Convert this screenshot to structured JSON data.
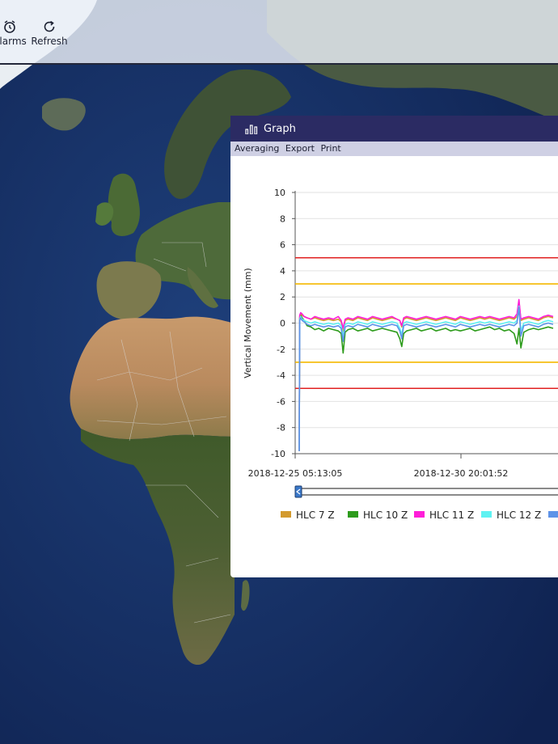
{
  "toolbar": {
    "alarms_label": "Alarms",
    "refresh_label": "Refresh"
  },
  "graph_window": {
    "title": "Graph",
    "menu": [
      "Averaging",
      "Export",
      "Print"
    ]
  },
  "colors": {
    "alarm_line": "#e02020",
    "warning_line": "#f5b800",
    "titlebar": "#2b2b63"
  },
  "chart_data": {
    "type": "line",
    "title": "",
    "xlabel": "",
    "ylabel": "Vertical Movement (mm)",
    "ylim": [
      -10,
      10
    ],
    "yticks": [
      10,
      8,
      6,
      4,
      2,
      0,
      -2,
      -4,
      -6,
      -8,
      -10
    ],
    "xticks": [
      "2018-12-25 05:13:05",
      "2018-12-30 20:01:52"
    ],
    "grid": true,
    "thresholds": [
      {
        "name": "alarm-upper",
        "value": 5,
        "color": "#e02020"
      },
      {
        "name": "warning-upper",
        "value": 3,
        "color": "#f5b800"
      },
      {
        "name": "warning-lower",
        "value": -3,
        "color": "#f5b800"
      },
      {
        "name": "alarm-lower",
        "value": -5,
        "color": "#e02020"
      }
    ],
    "x": [
      0,
      0.05,
      0.15,
      0.3,
      0.5,
      0.8,
      1.2,
      1.6,
      2.0,
      2.5,
      3.0,
      3.5,
      4.0,
      4.3,
      4.5,
      4.7,
      5.0,
      5.5,
      6.0,
      6.5,
      7.0,
      7.5,
      8.0,
      8.5,
      9.0,
      9.5,
      10.0,
      10.3,
      10.5,
      10.7,
      11.0,
      11.5,
      12.0,
      12.5,
      13.0,
      13.5,
      14.0,
      14.5,
      15.0,
      15.5,
      16.0,
      16.5,
      17.0,
      17.5,
      18.0,
      18.5,
      19.0,
      19.5,
      20.0,
      20.5,
      21.0,
      21.5,
      22.0,
      22.3,
      22.5,
      22.7,
      23.0,
      23.5,
      24.0,
      24.5,
      25.0,
      25.5,
      26.0
    ],
    "series": [
      {
        "name": "HLC 7 Z",
        "color": "#d39a2e",
        "values": [
          -9.8,
          0.5,
          0.7,
          0.6,
          0.5,
          0.4,
          0.3,
          0.4,
          0.3,
          0.2,
          0.3,
          0.2,
          0.3,
          0.1,
          -0.6,
          0.2,
          0.3,
          0.2,
          0.4,
          0.3,
          0.2,
          0.4,
          0.3,
          0.2,
          0.3,
          0.4,
          0.3,
          0.2,
          -0.3,
          0.3,
          0.4,
          0.3,
          0.2,
          0.3,
          0.4,
          0.3,
          0.2,
          0.3,
          0.4,
          0.3,
          0.2,
          0.4,
          0.3,
          0.2,
          0.3,
          0.4,
          0.3,
          0.4,
          0.3,
          0.2,
          0.3,
          0.4,
          0.3,
          0.5,
          1.7,
          0.2,
          0.3,
          0.4,
          0.3,
          0.2,
          0.4,
          0.5,
          0.4
        ]
      },
      {
        "name": "HLC 10 Z",
        "color": "#2d9b1b",
        "values": [
          -9.8,
          0.4,
          0.6,
          0.4,
          0.2,
          -0.2,
          -0.3,
          -0.5,
          -0.4,
          -0.6,
          -0.4,
          -0.5,
          -0.6,
          -0.8,
          -2.3,
          -0.7,
          -0.5,
          -0.4,
          -0.6,
          -0.5,
          -0.4,
          -0.6,
          -0.5,
          -0.4,
          -0.5,
          -0.6,
          -0.7,
          -1.2,
          -1.8,
          -0.8,
          -0.6,
          -0.5,
          -0.4,
          -0.6,
          -0.5,
          -0.4,
          -0.6,
          -0.5,
          -0.4,
          -0.6,
          -0.5,
          -0.6,
          -0.5,
          -0.4,
          -0.6,
          -0.5,
          -0.4,
          -0.3,
          -0.5,
          -0.4,
          -0.6,
          -0.5,
          -0.8,
          -1.6,
          -0.4,
          -1.9,
          -0.7,
          -0.5,
          -0.4,
          -0.5,
          -0.4,
          -0.3,
          -0.4
        ]
      },
      {
        "name": "HLC 11 Z",
        "color": "#ff1dd8",
        "values": [
          -9.8,
          0.6,
          0.8,
          0.7,
          0.5,
          0.4,
          0.3,
          0.5,
          0.4,
          0.3,
          0.4,
          0.3,
          0.5,
          0.2,
          -0.4,
          0.3,
          0.4,
          0.3,
          0.5,
          0.4,
          0.3,
          0.5,
          0.4,
          0.3,
          0.4,
          0.5,
          0.3,
          0.2,
          -0.2,
          0.4,
          0.5,
          0.4,
          0.3,
          0.4,
          0.5,
          0.4,
          0.3,
          0.4,
          0.5,
          0.4,
          0.3,
          0.5,
          0.4,
          0.3,
          0.4,
          0.5,
          0.4,
          0.5,
          0.4,
          0.3,
          0.4,
          0.5,
          0.4,
          0.7,
          1.8,
          0.3,
          0.4,
          0.5,
          0.4,
          0.3,
          0.5,
          0.6,
          0.5
        ]
      },
      {
        "name": "HLC 12 Z",
        "color": "#5ef2f2",
        "values": [
          -9.8,
          0.3,
          0.5,
          0.3,
          0.2,
          0.1,
          0.0,
          0.1,
          0.0,
          -0.1,
          0.0,
          -0.1,
          0.0,
          -0.2,
          -1.0,
          -0.1,
          0.0,
          -0.1,
          0.1,
          0.0,
          -0.1,
          0.1,
          0.0,
          -0.1,
          0.0,
          0.1,
          0.0,
          -0.4,
          -0.9,
          0.0,
          0.1,
          0.0,
          -0.1,
          0.0,
          0.1,
          0.0,
          -0.1,
          0.0,
          0.1,
          0.0,
          -0.1,
          0.1,
          0.0,
          -0.1,
          0.0,
          0.1,
          0.0,
          0.1,
          0.0,
          -0.1,
          0.0,
          0.1,
          0.0,
          0.2,
          1.3,
          -0.6,
          0.0,
          0.1,
          0.0,
          -0.1,
          0.1,
          0.2,
          0.1
        ]
      },
      {
        "name": "",
        "color": "#5e93e8",
        "values": [
          -9.8,
          0.2,
          0.4,
          0.2,
          0.1,
          -0.1,
          -0.2,
          -0.1,
          -0.2,
          -0.3,
          -0.2,
          -0.3,
          -0.2,
          -0.4,
          -1.4,
          -0.3,
          -0.2,
          -0.3,
          -0.1,
          -0.2,
          -0.3,
          -0.1,
          -0.2,
          -0.3,
          -0.2,
          -0.1,
          -0.2,
          -0.6,
          -1.2,
          -0.2,
          -0.1,
          -0.2,
          -0.3,
          -0.2,
          -0.1,
          -0.2,
          -0.3,
          -0.2,
          -0.1,
          -0.2,
          -0.3,
          -0.1,
          -0.2,
          -0.3,
          -0.2,
          -0.1,
          -0.2,
          -0.1,
          -0.2,
          -0.3,
          -0.2,
          -0.1,
          -0.2,
          0.0,
          1.2,
          -1.0,
          -0.2,
          -0.1,
          -0.2,
          -0.3,
          -0.1,
          0.0,
          -0.1
        ]
      }
    ],
    "legend_position": "bottom"
  }
}
